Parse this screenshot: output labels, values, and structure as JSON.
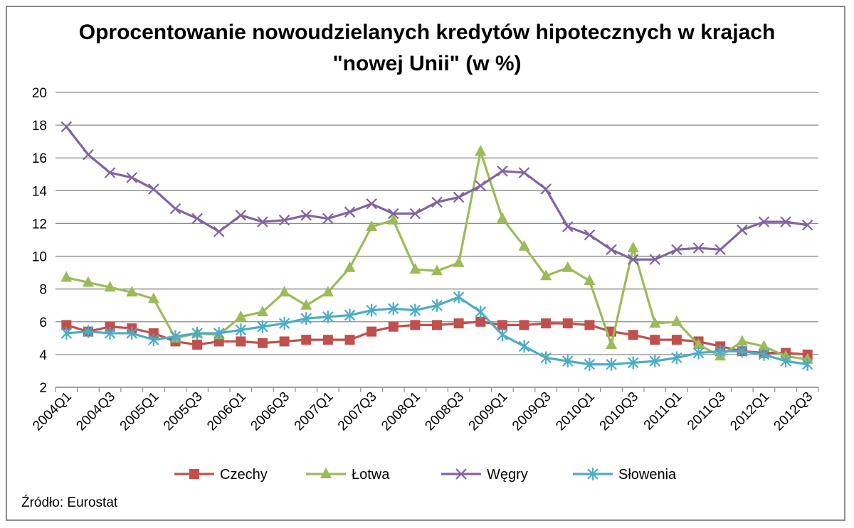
{
  "title_line1": "Oprocentowanie nowoudzielanych kredytów hipotecznych w krajach",
  "title_line2": "\"nowej Unii\" (w %)",
  "source": "Źródło: Eurostat",
  "chart_data": {
    "type": "line",
    "title": "Oprocentowanie nowoudzielanych kredytów hipotecznych w krajach \"nowej Unii\" (w %)",
    "ylim": [
      2,
      20
    ],
    "yticks": [
      2,
      4,
      6,
      8,
      10,
      12,
      14,
      16,
      18,
      20
    ],
    "grid": true,
    "legend_position": "bottom",
    "categories": [
      "2004Q1",
      "2004Q2",
      "2004Q3",
      "2004Q4",
      "2005Q1",
      "2005Q2",
      "2005Q3",
      "2005Q4",
      "2006Q1",
      "2006Q2",
      "2006Q3",
      "2006Q4",
      "2007Q1",
      "2007Q2",
      "2007Q3",
      "2007Q4",
      "2008Q1",
      "2008Q2",
      "2008Q3",
      "2008Q4",
      "2009Q1",
      "2009Q2",
      "2009Q3",
      "2009Q4",
      "2010Q1",
      "2010Q2",
      "2010Q3",
      "2010Q4",
      "2011Q1",
      "2011Q2",
      "2011Q3",
      "2011Q4",
      "2012Q1",
      "2012Q2",
      "2012Q3"
    ],
    "xtick_labels": [
      "2004Q1",
      "2004Q3",
      "2005Q1",
      "2005Q3",
      "2006Q1",
      "2006Q3",
      "2007Q1",
      "2007Q3",
      "2008Q1",
      "2008Q3",
      "2009Q1",
      "2009Q3",
      "2010Q1",
      "2010Q3",
      "2011Q1",
      "2011Q3",
      "2012Q1",
      "2012Q3"
    ],
    "series": [
      {
        "name": "Czechy",
        "color": "#c0504d",
        "marker": "square",
        "values": [
          5.8,
          5.4,
          5.7,
          5.6,
          5.3,
          4.8,
          4.6,
          4.8,
          4.8,
          4.7,
          4.8,
          4.9,
          4.9,
          4.9,
          5.4,
          5.7,
          5.8,
          5.8,
          5.9,
          6.0,
          5.8,
          5.8,
          5.9,
          5.9,
          5.8,
          5.4,
          5.2,
          4.9,
          4.9,
          4.8,
          4.5,
          4.2,
          4.1,
          4.1,
          4.0
        ]
      },
      {
        "name": "Łotwa",
        "color": "#9bbb59",
        "marker": "triangle",
        "values": [
          8.7,
          8.4,
          8.1,
          7.8,
          7.4,
          5.0,
          5.3,
          5.2,
          6.3,
          6.6,
          7.8,
          7.0,
          7.8,
          9.3,
          11.8,
          12.2,
          9.2,
          9.1,
          9.6,
          16.4,
          12.3,
          10.6,
          8.8,
          9.3,
          8.5,
          4.6,
          10.5,
          5.9,
          6.0,
          4.6,
          3.9,
          4.8,
          4.5,
          3.9,
          3.7
        ]
      },
      {
        "name": "Węgry",
        "color": "#8064a2",
        "marker": "x",
        "values": [
          17.9,
          16.2,
          15.1,
          14.8,
          14.1,
          12.9,
          12.3,
          11.5,
          12.5,
          12.1,
          12.2,
          12.5,
          12.3,
          12.7,
          13.2,
          12.6,
          12.6,
          13.3,
          13.6,
          14.3,
          15.2,
          15.1,
          14.1,
          11.8,
          11.3,
          10.4,
          9.8,
          9.8,
          10.4,
          10.5,
          10.4,
          11.6,
          12.1,
          12.1,
          11.9
        ]
      },
      {
        "name": "Słowenia",
        "color": "#4bacc6",
        "marker": "star",
        "values": [
          5.3,
          5.4,
          5.3,
          5.3,
          4.9,
          5.1,
          5.3,
          5.3,
          5.5,
          5.7,
          5.9,
          6.2,
          6.3,
          6.4,
          6.7,
          6.8,
          6.7,
          7.0,
          7.5,
          6.6,
          5.2,
          4.5,
          3.8,
          3.6,
          3.4,
          3.4,
          3.5,
          3.6,
          3.8,
          4.1,
          4.2,
          4.2,
          4.0,
          3.6,
          3.4
        ]
      }
    ]
  }
}
